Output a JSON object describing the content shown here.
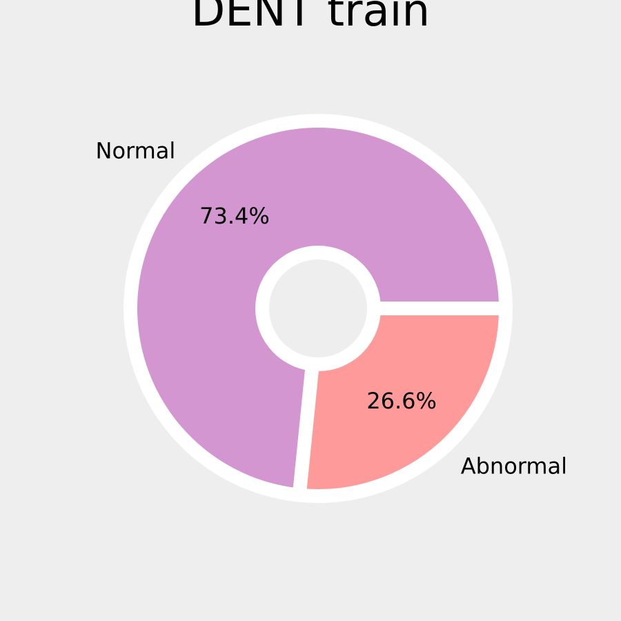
{
  "chart_data": {
    "type": "pie",
    "title": "DENT train",
    "style": "donut",
    "start_angle_deg": 0,
    "direction": "counterclockwise",
    "slices": [
      {
        "label": "Normal",
        "value": 73.4,
        "pct_label": "73.4%",
        "color": "#d396d0"
      },
      {
        "label": "Abnormal",
        "value": 26.6,
        "pct_label": "26.6%",
        "color": "#ff9a9a"
      }
    ],
    "edge_color": "#ffffff",
    "background": "#eeeeee"
  }
}
